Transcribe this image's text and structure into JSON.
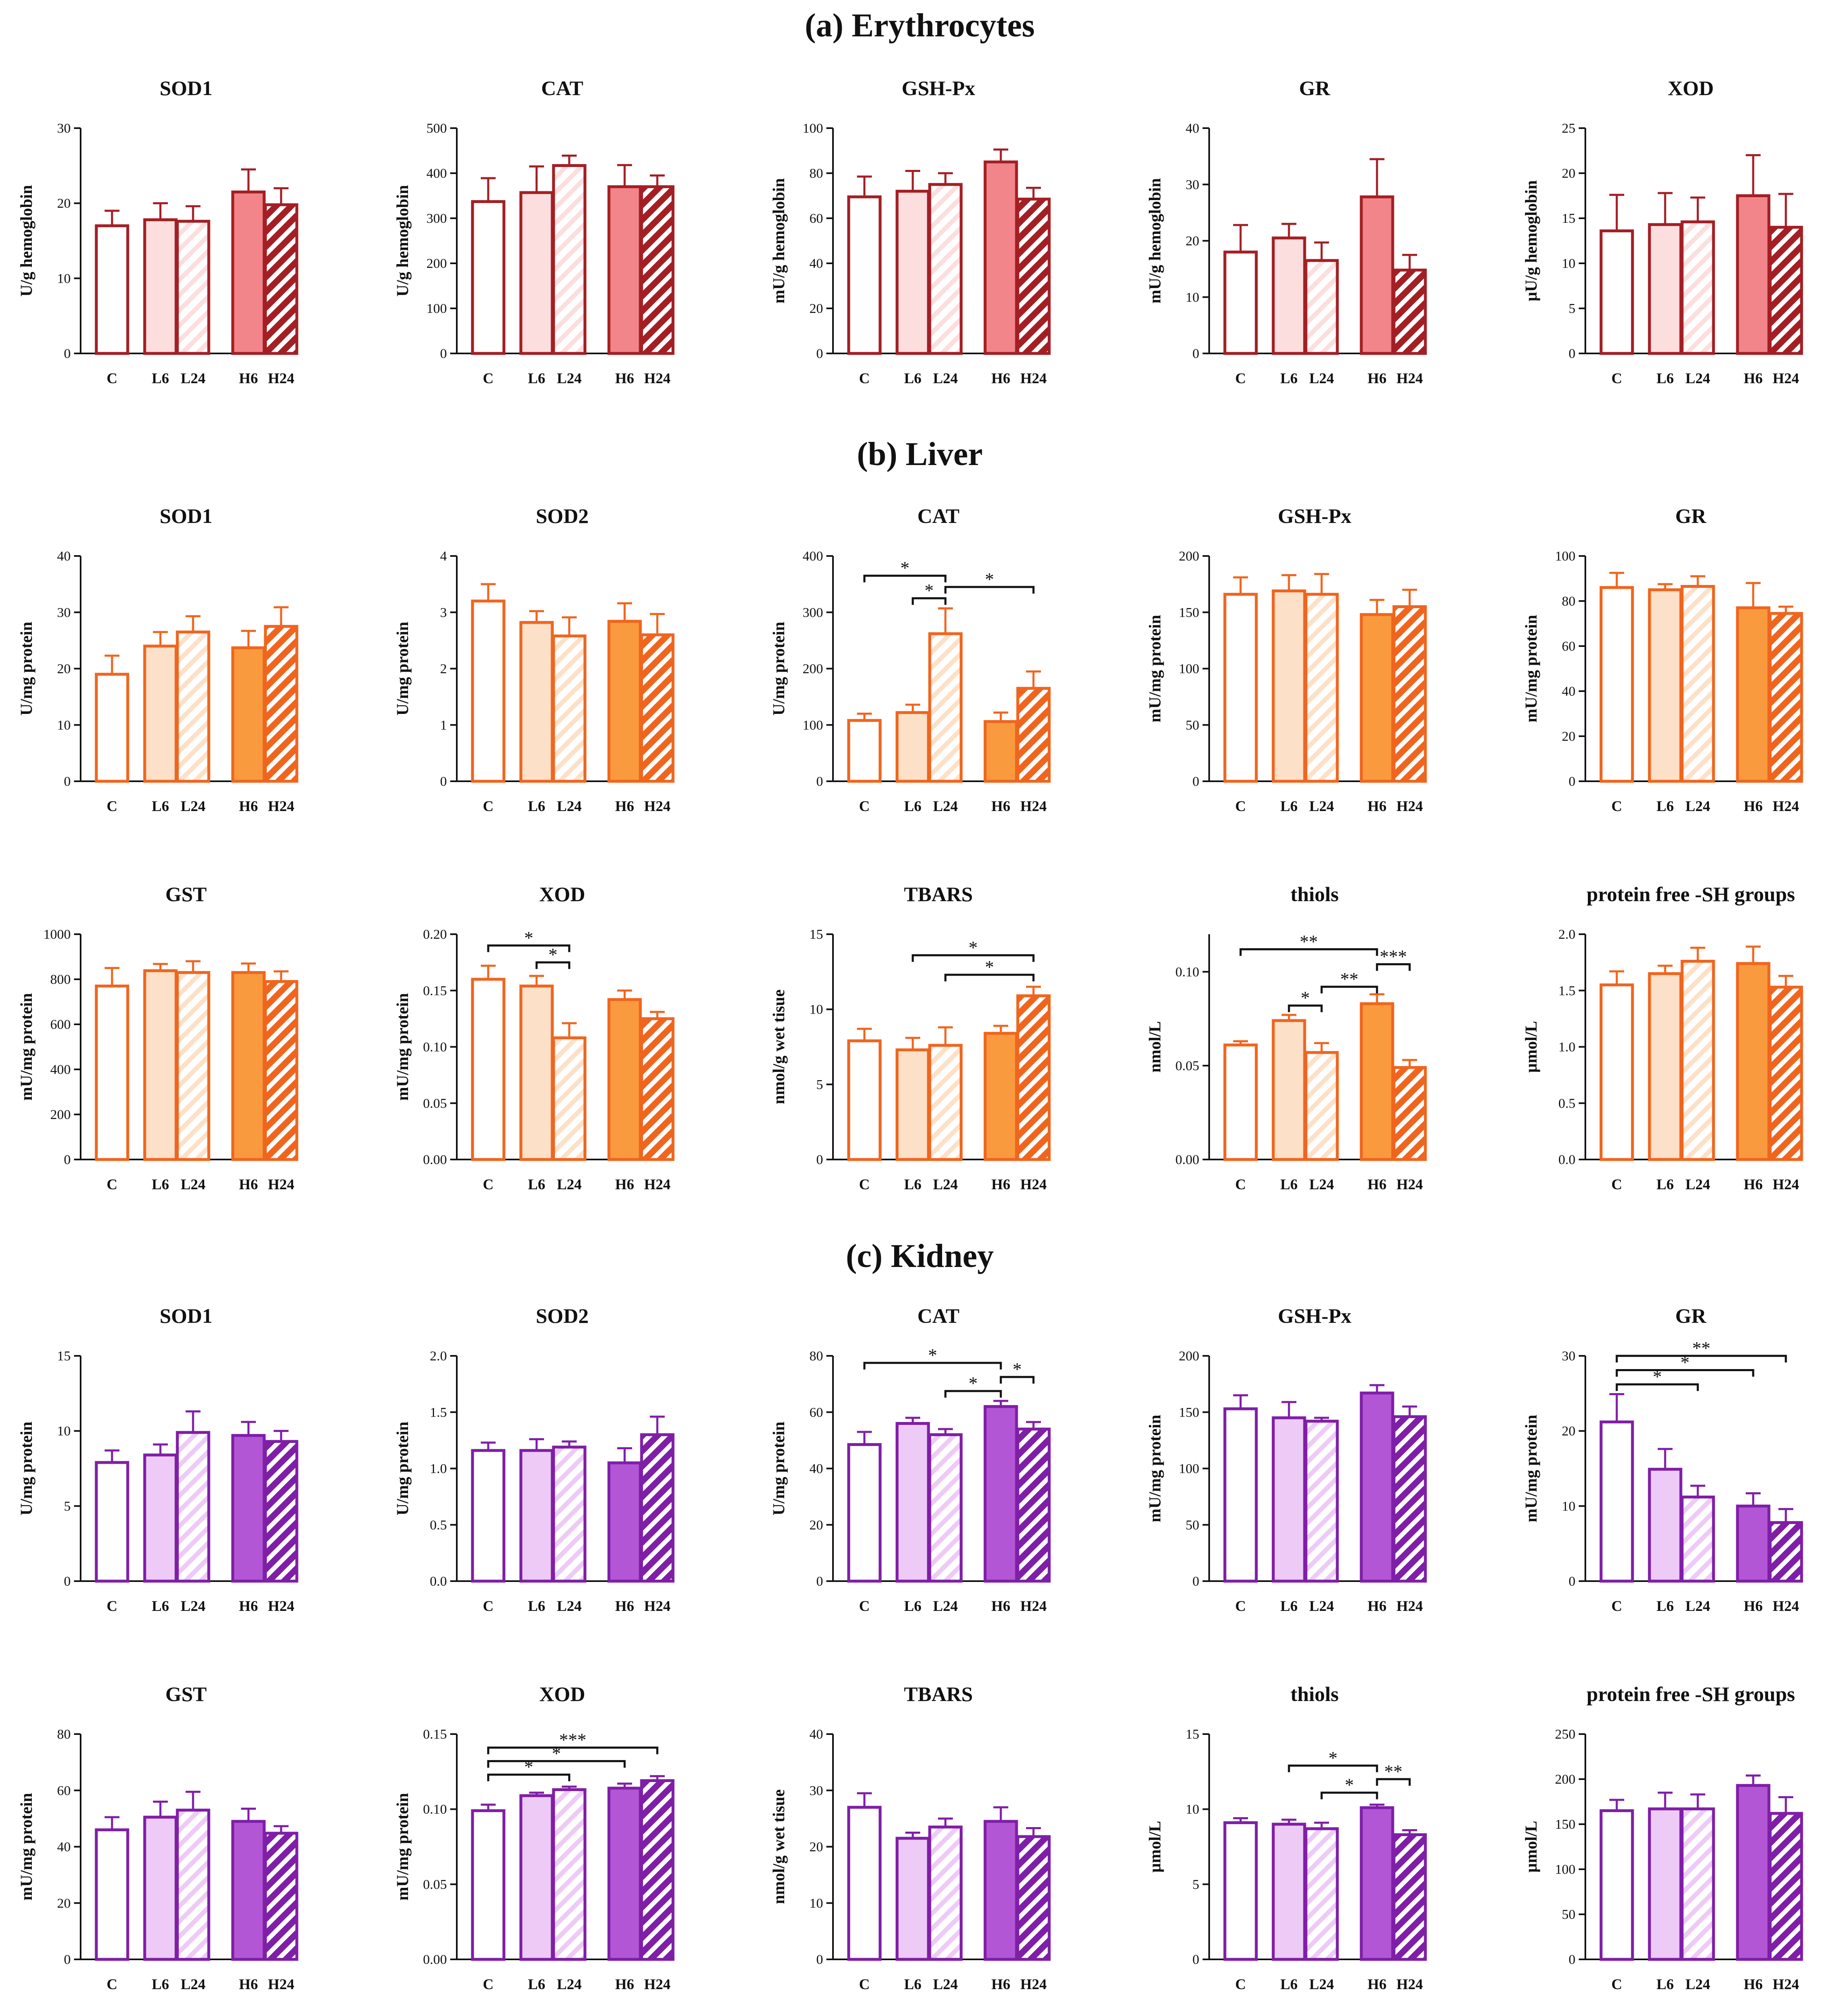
{
  "figure": {
    "categories": [
      "C",
      "L6",
      "L24",
      "H6",
      "H24"
    ]
  },
  "sections": [
    {
      "title": "(a) Erythrocytes",
      "palette": {
        "edge": "#a31f24",
        "light": "#fcdede",
        "dark": "#f28589"
      }
    },
    {
      "title": "(b) Liver",
      "palette": {
        "edge": "#f0651e",
        "light": "#fde0c8",
        "dark": "#f99a3e"
      }
    },
    {
      "title": "(c) Kidney",
      "palette": {
        "edge": "#7f1ea7",
        "light": "#eecaf6",
        "dark": "#b356d6"
      }
    }
  ],
  "chart_data": [
    {
      "section": 0,
      "type": "bar",
      "title": "SOD1",
      "ylabel": "U/g hemoglobin",
      "ylim": [
        0,
        30
      ],
      "ticks": [
        "0",
        "10",
        "20",
        "30"
      ],
      "categories": [
        "C",
        "L6",
        "L24",
        "H6",
        "H24"
      ],
      "values": [
        17,
        17.8,
        17.6,
        21.5,
        19.8
      ],
      "errors": [
        2,
        2.2,
        2,
        3,
        2.2
      ],
      "significance": []
    },
    {
      "section": 0,
      "type": "bar",
      "title": "CAT",
      "ylabel": "U/g hemoglobin",
      "ylim": [
        0,
        500
      ],
      "ticks": [
        "0",
        "100",
        "200",
        "300",
        "400",
        "500"
      ],
      "categories": [
        "C",
        "L6",
        "L24",
        "H6",
        "H24"
      ],
      "values": [
        337,
        357,
        417,
        370,
        370
      ],
      "errors": [
        52,
        58,
        22,
        48,
        25
      ],
      "significance": []
    },
    {
      "section": 0,
      "type": "bar",
      "title": "GSH-Px",
      "ylabel": "mU/g hemoglobin",
      "ylim": [
        0,
        100
      ],
      "ticks": [
        "0",
        "20",
        "40",
        "60",
        "80",
        "100"
      ],
      "categories": [
        "C",
        "L6",
        "L24",
        "H6",
        "H24"
      ],
      "values": [
        69.5,
        72,
        75,
        85,
        68.5
      ],
      "errors": [
        9,
        9,
        5,
        5.5,
        5
      ],
      "significance": []
    },
    {
      "section": 0,
      "type": "bar",
      "title": "GR",
      "ylabel": "mU/g hemoglobin",
      "ylim": [
        0,
        40
      ],
      "ticks": [
        "0",
        "10",
        "20",
        "30",
        "40"
      ],
      "categories": [
        "C",
        "L6",
        "L24",
        "H6",
        "H24"
      ],
      "values": [
        18,
        20.5,
        16.5,
        27.8,
        14.8
      ],
      "errors": [
        4.8,
        2.5,
        3.2,
        6.7,
        2.7
      ],
      "significance": []
    },
    {
      "section": 0,
      "type": "bar",
      "title": "XOD",
      "ylabel": "µU/g hemoglobin",
      "ylim": [
        0,
        25
      ],
      "ticks": [
        "0",
        "5",
        "10",
        "15",
        "20",
        "25"
      ],
      "categories": [
        "C",
        "L6",
        "L24",
        "H6",
        "H24"
      ],
      "values": [
        13.6,
        14.3,
        14.6,
        17.5,
        14
      ],
      "errors": [
        4,
        3.5,
        2.7,
        4.5,
        3.7
      ],
      "significance": []
    },
    {
      "section": 1,
      "type": "bar",
      "title": "SOD1",
      "ylabel": "U/mg protein",
      "ylim": [
        0,
        40
      ],
      "ticks": [
        "0",
        "10",
        "20",
        "30",
        "40"
      ],
      "categories": [
        "C",
        "L6",
        "L24",
        "H6",
        "H24"
      ],
      "values": [
        19,
        24,
        26.5,
        23.7,
        27.5
      ],
      "errors": [
        3.3,
        2.5,
        2.8,
        3,
        3.4
      ],
      "significance": []
    },
    {
      "section": 1,
      "type": "bar",
      "title": "SOD2",
      "ylabel": "U/mg protein",
      "ylim": [
        0,
        4
      ],
      "ticks": [
        "0",
        "1",
        "2",
        "3",
        "4"
      ],
      "categories": [
        "C",
        "L6",
        "L24",
        "H6",
        "H24"
      ],
      "values": [
        3.2,
        2.82,
        2.58,
        2.84,
        2.6
      ],
      "errors": [
        0.3,
        0.2,
        0.33,
        0.32,
        0.37
      ],
      "significance": []
    },
    {
      "section": 1,
      "type": "bar",
      "title": "CAT",
      "ylabel": "U/mg protein",
      "ylim": [
        0,
        400
      ],
      "ticks": [
        "0",
        "100",
        "200",
        "300",
        "400"
      ],
      "categories": [
        "C",
        "L6",
        "L24",
        "H6",
        "H24"
      ],
      "values": [
        108,
        122,
        262,
        106,
        165
      ],
      "errors": [
        12,
        14,
        45,
        16,
        30
      ],
      "significance": [
        {
          "from": 0,
          "to": 2,
          "label": "*",
          "y": 365
        },
        {
          "from": 1,
          "to": 2,
          "label": "*",
          "y": 325
        },
        {
          "from": 2,
          "to": 4,
          "label": "*",
          "y": 345
        }
      ]
    },
    {
      "section": 1,
      "type": "bar",
      "title": "GSH-Px",
      "ylabel": "mU/mg protein",
      "ylim": [
        0,
        200
      ],
      "ticks": [
        "0",
        "50",
        "100",
        "150",
        "200"
      ],
      "categories": [
        "C",
        "L6",
        "L24",
        "H6",
        "H24"
      ],
      "values": [
        166,
        169,
        166,
        148,
        155
      ],
      "errors": [
        15,
        14,
        18,
        13,
        15
      ],
      "significance": []
    },
    {
      "section": 1,
      "type": "bar",
      "title": "GR",
      "ylabel": "mU/mg protein",
      "ylim": [
        0,
        100
      ],
      "ticks": [
        "0",
        "20",
        "40",
        "60",
        "80",
        "100"
      ],
      "categories": [
        "C",
        "L6",
        "L24",
        "H6",
        "H24"
      ],
      "values": [
        86,
        85,
        86.5,
        77,
        74.5
      ],
      "errors": [
        6.5,
        2.5,
        4.5,
        11,
        3
      ],
      "significance": []
    },
    {
      "section": 1,
      "type": "bar",
      "title": "GST",
      "ylabel": "mU/mg protein",
      "ylim": [
        0,
        1000
      ],
      "ticks": [
        "0",
        "200",
        "400",
        "600",
        "800",
        "1000"
      ],
      "categories": [
        "C",
        "L6",
        "L24",
        "H6",
        "H24"
      ],
      "values": [
        770,
        838,
        830,
        830,
        790
      ],
      "errors": [
        80,
        30,
        50,
        40,
        45
      ],
      "significance": []
    },
    {
      "section": 1,
      "type": "bar",
      "title": "XOD",
      "ylabel": "mU/mg protein",
      "ylim": [
        0,
        0.2
      ],
      "ticks": [
        "0.00",
        "0.05",
        "0.10",
        "0.15",
        "0.20"
      ],
      "categories": [
        "C",
        "L6",
        "L24",
        "H6",
        "H24"
      ],
      "values": [
        0.16,
        0.154,
        0.108,
        0.142,
        0.125
      ],
      "errors": [
        0.012,
        0.009,
        0.013,
        0.008,
        0.006
      ],
      "significance": [
        {
          "from": 0,
          "to": 2,
          "label": "*",
          "y": 0.19
        },
        {
          "from": 1,
          "to": 2,
          "label": "*",
          "y": 0.175
        }
      ]
    },
    {
      "section": 1,
      "type": "bar",
      "title": "TBARS",
      "ylabel": "nmol/g wet tisue",
      "ylim": [
        0,
        15
      ],
      "ticks": [
        "0",
        "5",
        "10",
        "15"
      ],
      "categories": [
        "C",
        "L6",
        "L24",
        "H6",
        "H24"
      ],
      "values": [
        7.9,
        7.3,
        7.6,
        8.4,
        10.9
      ],
      "errors": [
        0.8,
        0.8,
        1.2,
        0.5,
        0.6
      ],
      "significance": [
        {
          "from": 1,
          "to": 4,
          "label": "*",
          "y": 13.6
        },
        {
          "from": 2,
          "to": 4,
          "label": "*",
          "y": 12.3
        }
      ]
    },
    {
      "section": 1,
      "type": "bar",
      "title": "thiols",
      "ylabel": "nmol/L",
      "ylim": [
        0,
        0.12
      ],
      "ticks": [
        "0.00",
        "0.05",
        "0.10"
      ],
      "categories": [
        "C",
        "L6",
        "L24",
        "H6",
        "H24"
      ],
      "values": [
        0.061,
        0.074,
        0.057,
        0.083,
        0.049
      ],
      "errors": [
        0.002,
        0.003,
        0.005,
        0.005,
        0.004
      ],
      "significance": [
        {
          "from": 0,
          "to": 3,
          "label": "**",
          "y": 0.112
        },
        {
          "from": 1,
          "to": 2,
          "label": "*",
          "y": 0.082
        },
        {
          "from": 2,
          "to": 3,
          "label": "**",
          "y": 0.092
        },
        {
          "from": 3,
          "to": 4,
          "label": "***",
          "y": 0.104
        }
      ]
    },
    {
      "section": 1,
      "type": "bar",
      "title": "protein free -SH groups",
      "ylabel": "µmol/L",
      "ylim": [
        0,
        2
      ],
      "ticks": [
        "0.0",
        "0.5",
        "1.0",
        "1.5",
        "2.0"
      ],
      "categories": [
        "C",
        "L6",
        "L24",
        "H6",
        "H24"
      ],
      "values": [
        1.55,
        1.65,
        1.76,
        1.74,
        1.53
      ],
      "errors": [
        0.12,
        0.07,
        0.12,
        0.15,
        0.1
      ],
      "significance": []
    },
    {
      "section": 2,
      "type": "bar",
      "title": "SOD1",
      "ylabel": "U/mg protein",
      "ylim": [
        0,
        15
      ],
      "ticks": [
        "0",
        "5",
        "10",
        "15"
      ],
      "categories": [
        "C",
        "L6",
        "L24",
        "H6",
        "H24"
      ],
      "values": [
        7.9,
        8.4,
        9.9,
        9.7,
        9.3
      ],
      "errors": [
        0.8,
        0.7,
        1.4,
        0.9,
        0.7
      ],
      "significance": []
    },
    {
      "section": 2,
      "type": "bar",
      "title": "SOD2",
      "ylabel": "U/mg protein",
      "ylim": [
        0,
        2
      ],
      "ticks": [
        "0.0",
        "0.5",
        "1.0",
        "1.5",
        "2.0"
      ],
      "categories": [
        "C",
        "L6",
        "L24",
        "H6",
        "H24"
      ],
      "values": [
        1.16,
        1.16,
        1.19,
        1.05,
        1.3
      ],
      "errors": [
        0.07,
        0.1,
        0.05,
        0.13,
        0.16
      ],
      "significance": []
    },
    {
      "section": 2,
      "type": "bar",
      "title": "CAT",
      "ylabel": "U/mg protein",
      "ylim": [
        0,
        80
      ],
      "ticks": [
        "0",
        "20",
        "40",
        "60",
        "80"
      ],
      "categories": [
        "C",
        "L6",
        "L24",
        "H6",
        "H24"
      ],
      "values": [
        48.5,
        56,
        52,
        62,
        54
      ],
      "errors": [
        4.5,
        2,
        2,
        2,
        2.5
      ],
      "significance": [
        {
          "from": 0,
          "to": 3,
          "label": "*",
          "y": 77.5
        },
        {
          "from": 2,
          "to": 3,
          "label": "*",
          "y": 67.5
        },
        {
          "from": 3,
          "to": 4,
          "label": "*",
          "y": 72.5
        }
      ]
    },
    {
      "section": 2,
      "type": "bar",
      "title": "GSH-Px",
      "ylabel": "mU/mg protein",
      "ylim": [
        0,
        200
      ],
      "ticks": [
        "0",
        "50",
        "100",
        "150",
        "200"
      ],
      "categories": [
        "C",
        "L6",
        "L24",
        "H6",
        "H24"
      ],
      "values": [
        153,
        145,
        142,
        167,
        146
      ],
      "errors": [
        12,
        14,
        3,
        7,
        9
      ],
      "significance": []
    },
    {
      "section": 2,
      "type": "bar",
      "title": "GR",
      "ylabel": "mU/mg protein",
      "ylim": [
        0,
        30
      ],
      "ticks": [
        "0",
        "10",
        "20",
        "30"
      ],
      "categories": [
        "C",
        "L6",
        "L24",
        "H6",
        "H24"
      ],
      "values": [
        21.2,
        14.9,
        11.2,
        10,
        7.8
      ],
      "errors": [
        3.7,
        2.7,
        1.5,
        1.7,
        1.8
      ],
      "significance": [
        {
          "from": 0,
          "to": 2,
          "label": "*",
          "y": 26.2
        },
        {
          "from": 0,
          "to": 3,
          "label": "*",
          "y": 28.1
        },
        {
          "from": 0,
          "to": 4,
          "label": "**",
          "y": 30
        }
      ]
    },
    {
      "section": 2,
      "type": "bar",
      "title": "GST",
      "ylabel": "mU/mg protein",
      "ylim": [
        0,
        80
      ],
      "ticks": [
        "0",
        "20",
        "40",
        "60",
        "80"
      ],
      "categories": [
        "C",
        "L6",
        "L24",
        "H6",
        "H24"
      ],
      "values": [
        46,
        50.5,
        53,
        49,
        44.8
      ],
      "errors": [
        4.5,
        5.5,
        6.5,
        4.5,
        2.5
      ],
      "significance": []
    },
    {
      "section": 2,
      "type": "bar",
      "title": "XOD",
      "ylabel": "mU/mg protein",
      "ylim": [
        0,
        0.15
      ],
      "ticks": [
        "0.00",
        "0.05",
        "0.10",
        "0.15"
      ],
      "categories": [
        "C",
        "L6",
        "L24",
        "H6",
        "H24"
      ],
      "values": [
        0.099,
        0.109,
        0.113,
        0.114,
        0.119
      ],
      "errors": [
        0.004,
        0.002,
        0.002,
        0.003,
        0.003
      ],
      "significance": [
        {
          "from": 0,
          "to": 2,
          "label": "*",
          "y": 0.123
        },
        {
          "from": 0,
          "to": 3,
          "label": "*",
          "y": 0.132
        },
        {
          "from": 0,
          "to": 4,
          "label": "***",
          "y": 0.141
        }
      ]
    },
    {
      "section": 2,
      "type": "bar",
      "title": "TBARS",
      "ylabel": "nmol/g wet tisue",
      "ylim": [
        0,
        40
      ],
      "ticks": [
        "0",
        "10",
        "20",
        "30",
        "40"
      ],
      "categories": [
        "C",
        "L6",
        "L24",
        "H6",
        "H24"
      ],
      "values": [
        27,
        21.5,
        23.5,
        24.5,
        21.8
      ],
      "errors": [
        2.5,
        1,
        1.5,
        2.5,
        1.5
      ],
      "significance": []
    },
    {
      "section": 2,
      "type": "bar",
      "title": "thiols",
      "ylabel": "µmol/L",
      "ylim": [
        0,
        15
      ],
      "ticks": [
        "0",
        "5",
        "10",
        "15"
      ],
      "categories": [
        "C",
        "L6",
        "L24",
        "H6",
        "H24"
      ],
      "values": [
        9.1,
        9,
        8.7,
        10.1,
        8.3
      ],
      "errors": [
        0.3,
        0.3,
        0.4,
        0.2,
        0.3
      ],
      "significance": [
        {
          "from": 1,
          "to": 3,
          "label": "*",
          "y": 12.9
        },
        {
          "from": 2,
          "to": 3,
          "label": "*",
          "y": 11.1
        },
        {
          "from": 3,
          "to": 4,
          "label": "**",
          "y": 12
        }
      ]
    },
    {
      "section": 2,
      "type": "bar",
      "title": "protein free -SH groups",
      "ylabel": "µmol/L",
      "ylim": [
        0,
        250
      ],
      "ticks": [
        "0",
        "50",
        "100",
        "150",
        "200",
        "250"
      ],
      "categories": [
        "C",
        "L6",
        "L24",
        "H6",
        "H24"
      ],
      "values": [
        165,
        167,
        167,
        193,
        162
      ],
      "errors": [
        12,
        18,
        16,
        11,
        18
      ],
      "significance": []
    }
  ]
}
